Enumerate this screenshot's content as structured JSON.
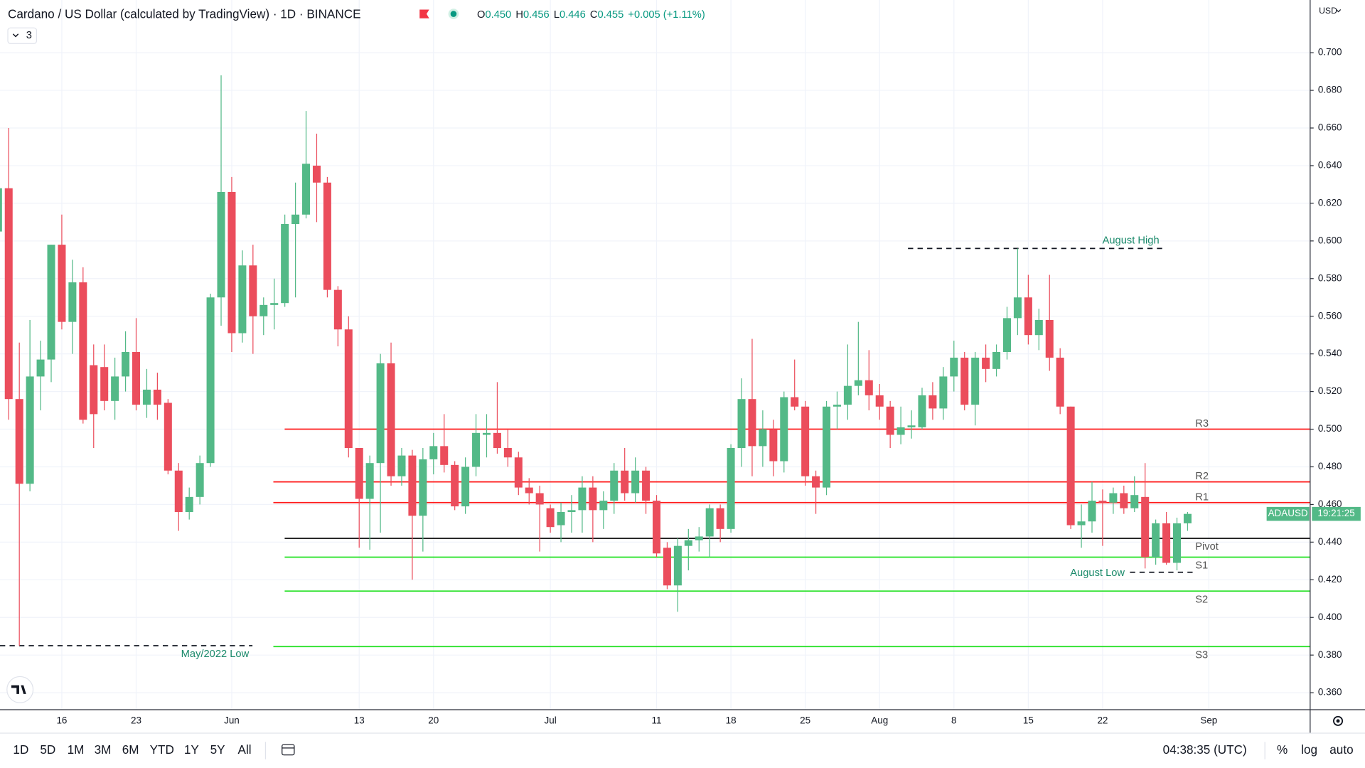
{
  "header": {
    "title": "Cardano / US Dollar (calculated by TradingView) · 1D · BINANCE",
    "ohlc": [
      {
        "label": "O",
        "value": "0.450"
      },
      {
        "label": "H",
        "value": "0.456"
      },
      {
        "label": "L",
        "value": "0.446"
      },
      {
        "label": "C",
        "value": "0.455"
      }
    ],
    "change": "+0.005 (+1.11%)",
    "indicator_count": "3"
  },
  "price_axis_currency": "USD",
  "symbol_tag": "ADAUSD",
  "countdown": "19:21:25",
  "toolbar": {
    "ranges": [
      "1D",
      "5D",
      "1M",
      "3M",
      "6M",
      "YTD",
      "1Y",
      "5Y",
      "All"
    ],
    "clock": "04:38:35 (UTC)",
    "options": [
      "%",
      "log",
      "auto"
    ]
  },
  "chart_data": {
    "type": "candlestick",
    "categories": [
      null,
      null,
      null,
      null,
      null,
      null,
      "16",
      null,
      null,
      null,
      null,
      null,
      null,
      "23",
      null,
      null,
      null,
      null,
      null,
      null,
      null,
      null,
      "Jun",
      null,
      null,
      null,
      null,
      null,
      null,
      null,
      null,
      null,
      null,
      null,
      "13",
      null,
      null,
      null,
      null,
      null,
      null,
      "20",
      null,
      null,
      null,
      null,
      null,
      null,
      null,
      null,
      null,
      null,
      "Jul",
      null,
      null,
      null,
      null,
      null,
      null,
      null,
      null,
      null,
      "11",
      null,
      null,
      null,
      null,
      null,
      null,
      "18",
      null,
      null,
      null,
      null,
      null,
      null,
      "25",
      null,
      null,
      null,
      null,
      null,
      null,
      "Aug",
      null,
      null,
      null,
      null,
      null,
      null,
      "8",
      null,
      null,
      null,
      null,
      null,
      null,
      "15",
      null,
      null,
      null,
      null,
      null,
      null,
      "22",
      null,
      null,
      null,
      null,
      null,
      null,
      null,
      null,
      null,
      "Sep"
    ],
    "open": [
      0.605,
      0.628,
      0.516,
      0.471,
      0.528,
      0.537,
      0.598,
      0.557,
      0.578,
      0.534,
      0.533,
      0.515,
      0.528,
      0.541,
      0.513,
      0.521,
      0.514,
      0.478,
      0.456,
      0.464,
      0.482,
      0.57,
      0.626,
      0.551,
      0.587,
      0.56,
      0.566,
      0.567,
      0.609,
      0.614,
      0.64,
      0.631,
      0.574,
      0.553,
      0.49,
      0.463,
      0.482,
      0.535,
      0.475,
      0.486,
      0.454,
      0.484,
      0.491,
      0.481,
      0.459,
      0.48,
      0.497,
      0.498,
      0.49,
      0.485,
      0.469,
      0.466,
      0.458,
      0.449,
      0.456,
      0.457,
      0.469,
      0.457,
      0.462,
      0.478,
      0.466,
      0.478,
      0.462,
      0.437,
      0.417,
      0.438,
      0.441,
      0.443,
      0.458,
      0.447,
      0.49,
      0.516,
      0.491,
      0.5,
      0.483,
      0.517,
      0.512,
      0.475,
      0.469,
      0.512,
      0.513,
      0.523,
      0.526,
      0.518,
      0.512,
      0.497,
      0.501,
      0.501,
      0.518,
      0.511,
      0.528,
      0.538,
      0.513,
      0.538,
      0.532,
      0.541,
      0.559,
      0.57,
      0.55,
      0.558,
      0.538,
      0.512,
      0.449,
      0.451,
      0.462,
      0.461,
      0.466,
      0.458,
      0.464,
      0.432,
      0.45,
      0.429,
      0.45,
      null,
      null
    ],
    "high": [
      0.63,
      0.66,
      0.546,
      0.558,
      0.547,
      0.598,
      0.614,
      0.59,
      0.586,
      0.545,
      0.545,
      0.538,
      0.552,
      0.559,
      0.532,
      0.53,
      0.516,
      0.482,
      0.469,
      0.486,
      0.572,
      0.688,
      0.634,
      0.595,
      0.598,
      0.57,
      0.58,
      0.614,
      0.631,
      0.669,
      0.657,
      0.634,
      0.576,
      0.56,
      0.49,
      0.486,
      0.54,
      0.546,
      0.49,
      0.489,
      0.49,
      0.498,
      0.508,
      0.483,
      0.485,
      0.508,
      0.508,
      0.525,
      0.5,
      0.488,
      0.474,
      0.47,
      0.46,
      0.461,
      0.465,
      0.475,
      0.475,
      0.467,
      0.482,
      0.49,
      0.485,
      0.48,
      0.465,
      0.44,
      0.442,
      0.447,
      0.448,
      0.46,
      0.46,
      0.492,
      0.527,
      0.548,
      0.51,
      0.505,
      0.52,
      0.537,
      0.515,
      0.478,
      0.515,
      0.52,
      0.545,
      0.557,
      0.542,
      0.524,
      0.515,
      0.512,
      0.51,
      0.522,
      0.525,
      0.533,
      0.547,
      0.541,
      0.541,
      0.545,
      0.545,
      0.565,
      0.596,
      0.582,
      0.564,
      0.582,
      0.543,
      0.512,
      0.46,
      0.472,
      0.468,
      0.469,
      0.47,
      0.475,
      0.482,
      0.452,
      0.456,
      0.453,
      0.456,
      null,
      null
    ],
    "low": [
      0.6,
      0.505,
      0.385,
      0.467,
      0.51,
      0.525,
      0.553,
      0.54,
      0.503,
      0.49,
      0.51,
      0.505,
      0.52,
      0.51,
      0.506,
      0.505,
      0.476,
      0.446,
      0.452,
      0.46,
      0.48,
      0.555,
      0.541,
      0.546,
      0.54,
      0.55,
      0.553,
      0.565,
      0.57,
      0.612,
      0.61,
      0.57,
      0.544,
      0.485,
      0.437,
      0.436,
      0.445,
      0.47,
      0.47,
      0.42,
      0.435,
      0.476,
      0.477,
      0.457,
      0.455,
      0.475,
      0.485,
      0.487,
      0.48,
      0.465,
      0.46,
      0.435,
      0.445,
      0.44,
      0.445,
      0.445,
      0.44,
      0.447,
      0.455,
      0.462,
      0.461,
      0.455,
      0.432,
      0.415,
      0.403,
      0.425,
      0.435,
      0.432,
      0.44,
      0.445,
      0.48,
      0.475,
      0.48,
      0.475,
      0.477,
      0.51,
      0.47,
      0.455,
      0.465,
      0.5,
      0.505,
      0.518,
      0.51,
      0.505,
      0.49,
      0.492,
      0.495,
      0.5,
      0.505,
      0.505,
      0.52,
      0.51,
      0.502,
      0.525,
      0.528,
      0.537,
      0.55,
      0.545,
      0.542,
      0.531,
      0.508,
      0.447,
      0.437,
      0.445,
      0.438,
      0.455,
      0.455,
      0.456,
      0.426,
      0.428,
      0.428,
      0.425,
      0.446,
      null,
      null
    ],
    "close": [
      0.628,
      0.516,
      0.471,
      0.528,
      0.537,
      0.598,
      0.557,
      0.578,
      0.505,
      0.508,
      0.515,
      0.528,
      0.541,
      0.513,
      0.521,
      0.513,
      0.478,
      0.456,
      0.464,
      0.482,
      0.57,
      0.626,
      0.551,
      0.587,
      0.56,
      0.566,
      0.567,
      0.609,
      0.614,
      0.641,
      0.631,
      0.574,
      0.553,
      0.49,
      0.463,
      0.482,
      0.535,
      0.475,
      0.486,
      0.454,
      0.484,
      0.491,
      0.481,
      0.459,
      0.48,
      0.498,
      0.498,
      0.49,
      0.485,
      0.469,
      0.466,
      0.46,
      0.448,
      0.456,
      0.457,
      0.469,
      0.457,
      0.462,
      0.478,
      0.466,
      0.478,
      0.462,
      0.434,
      0.417,
      0.438,
      0.441,
      0.443,
      0.458,
      0.447,
      0.49,
      0.516,
      0.491,
      0.5,
      0.483,
      0.517,
      0.512,
      0.475,
      0.469,
      0.512,
      0.513,
      0.523,
      0.526,
      0.518,
      0.512,
      0.497,
      0.501,
      0.502,
      0.518,
      0.511,
      0.528,
      0.538,
      0.513,
      0.538,
      0.532,
      0.541,
      0.559,
      0.57,
      0.55,
      0.558,
      0.538,
      0.512,
      0.449,
      0.451,
      0.462,
      0.461,
      0.466,
      0.458,
      0.465,
      0.432,
      0.45,
      0.429,
      0.45,
      0.455,
      null,
      null
    ],
    "up_color": "#53b987",
    "down_color": "#eb4d5c",
    "ylim": [
      0.351,
      0.728
    ],
    "yticks": [
      {
        "value": 0.36,
        "label": "0.360"
      },
      {
        "value": 0.38,
        "label": "0.380"
      },
      {
        "value": 0.4,
        "label": "0.400"
      },
      {
        "value": 0.42,
        "label": "0.420"
      },
      {
        "value": 0.44,
        "label": "0.440"
      },
      {
        "value": 0.46,
        "label": "0.460"
      },
      {
        "value": 0.48,
        "label": "0.480"
      },
      {
        "value": 0.5,
        "label": "0.500"
      },
      {
        "value": 0.52,
        "label": "0.520"
      },
      {
        "value": 0.54,
        "label": "0.540"
      },
      {
        "value": 0.56,
        "label": "0.560"
      },
      {
        "value": 0.58,
        "label": "0.580"
      },
      {
        "value": 0.6,
        "label": "0.600"
      },
      {
        "value": 0.62,
        "label": "0.620"
      },
      {
        "value": 0.64,
        "label": "0.640"
      },
      {
        "value": 0.66,
        "label": "0.660"
      },
      {
        "value": 0.68,
        "label": "0.680"
      },
      {
        "value": 0.7,
        "label": "0.700"
      }
    ],
    "grid": true,
    "levels": [
      {
        "name": "R3",
        "value": 0.5,
        "color": "#ff1a1a"
      },
      {
        "name": "R2",
        "value": 0.472,
        "color": "#ff1a1a"
      },
      {
        "name": "R1",
        "value": 0.461,
        "color": "#ff1a1a"
      },
      {
        "name": "Pivot",
        "value": 0.442,
        "color": "#000000"
      },
      {
        "name": "S1",
        "value": 0.432,
        "color": "#22e022"
      },
      {
        "name": "S2",
        "value": 0.414,
        "color": "#22e022"
      },
      {
        "name": "S3",
        "value": 0.3845,
        "color": "#22e022"
      }
    ],
    "annotations": [
      {
        "text": "August High",
        "value": 0.596
      },
      {
        "text": "August Low",
        "value": 0.424
      },
      {
        "text": "May/2022 Low",
        "value": 0.385
      }
    ]
  }
}
